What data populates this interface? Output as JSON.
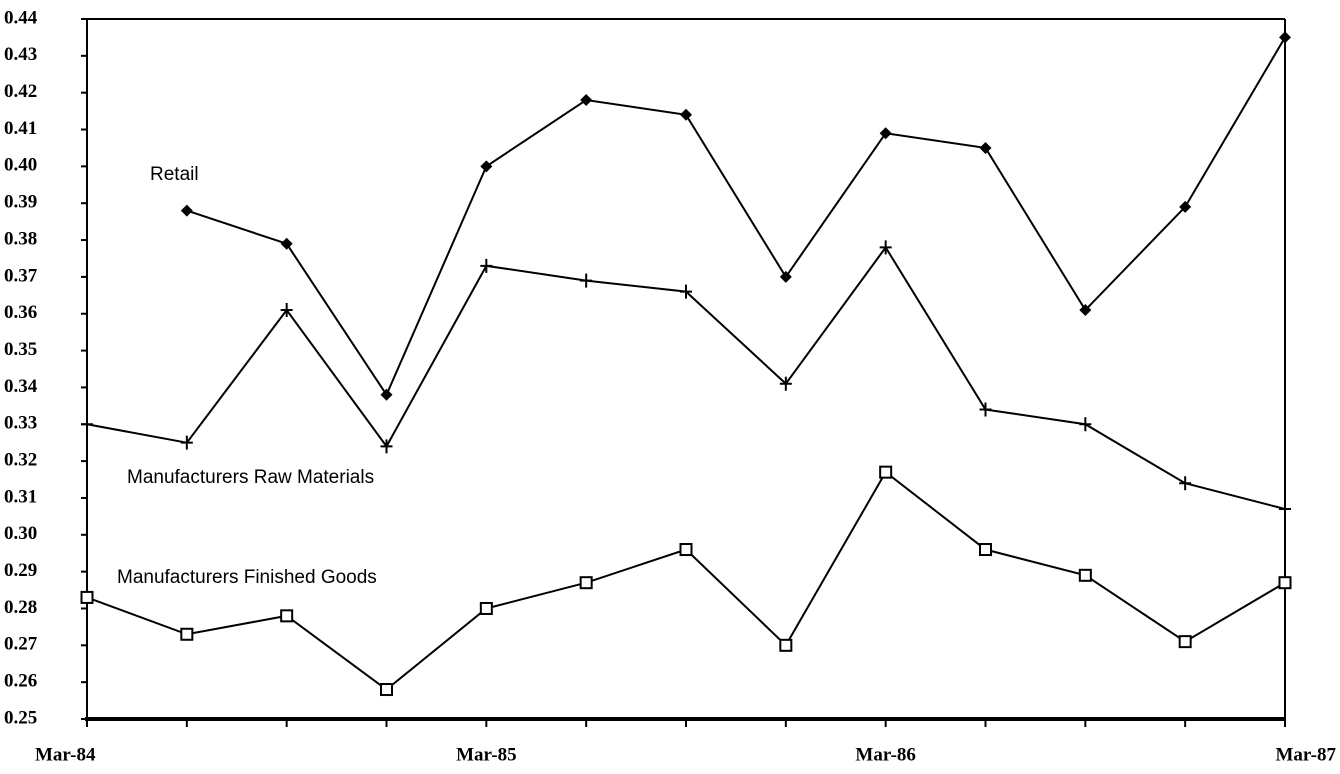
{
  "chart_data": {
    "type": "line",
    "categories": [
      "Mar-84",
      null,
      null,
      null,
      "Mar-85",
      null,
      null,
      null,
      "Mar-86",
      null,
      null,
      null,
      "Mar-87"
    ],
    "ylim": [
      0.25,
      0.44
    ],
    "yticks": [
      0.25,
      0.26,
      0.27,
      0.28,
      0.29,
      {
        "value": 0.3,
        "label": "0.30"
      },
      0.31,
      0.32,
      0.33,
      0.34,
      0.35,
      0.36,
      0.37,
      0.38,
      0.39,
      {
        "value": 0.4,
        "label": "0.40"
      },
      0.41,
      0.42,
      0.43,
      0.44
    ],
    "series": [
      {
        "name": "Retail",
        "color": "#000000",
        "marker": "diamond",
        "values": [
          null,
          0.388,
          0.379,
          0.338,
          0.4,
          0.418,
          0.414,
          0.37,
          0.409,
          0.405,
          0.361,
          0.389,
          0.435
        ]
      },
      {
        "name": "Manufacturers Raw Materials",
        "color": "#000000",
        "marker": "plus",
        "values": [
          0.33,
          0.325,
          0.361,
          0.324,
          0.373,
          0.369,
          0.366,
          0.341,
          0.378,
          0.334,
          0.33,
          0.314,
          0.307
        ]
      },
      {
        "name": "Manufacturers Finished Goods",
        "color": "#000000",
        "marker": "square",
        "values": [
          0.283,
          0.273,
          0.278,
          0.258,
          0.28,
          0.287,
          0.296,
          0.27,
          0.317,
          0.296,
          0.289,
          0.271,
          0.287
        ]
      }
    ]
  }
}
